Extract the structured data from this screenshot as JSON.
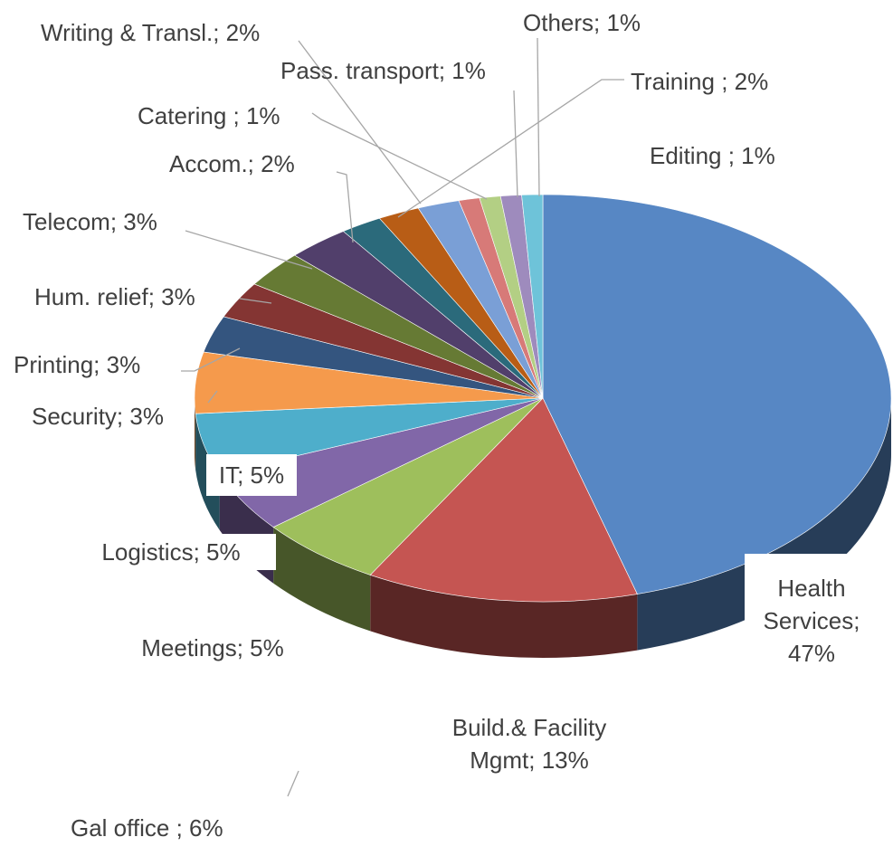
{
  "chart_data": {
    "type": "pie",
    "labels": [
      "Health Services; 47%",
      "Build.& Facility Mgmt; 13%",
      "Gal office ; 6%",
      "Meetings; 5%",
      "Logistics; 5%",
      "IT; 5%",
      "Security; 3%",
      "Printing; 3%",
      "Hum. relief; 3%",
      "Telecom; 3%",
      "Accom.; 2%",
      "Training ; 2%",
      "Writing & Transl.; 2%",
      "Catering ; 1%",
      "Editing ; 1%",
      "Pass. transport; 1%",
      "Others; 1%"
    ],
    "values": [
      47,
      13,
      6,
      5,
      5,
      5,
      3,
      3,
      3,
      3,
      2,
      2,
      2,
      1,
      1,
      1,
      1
    ],
    "colors": [
      "#5787c4",
      "#c55552",
      "#9ebf5c",
      "#8167a8",
      "#4eaecb",
      "#f59a4c",
      "#34557f",
      "#843533",
      "#667a34",
      "#513f6b",
      "#2b6a7b",
      "#b85d16",
      "#7a9fd6",
      "#d77a78",
      "#b3cf84",
      "#9e8bbd",
      "#6ec3d9"
    ]
  }
}
